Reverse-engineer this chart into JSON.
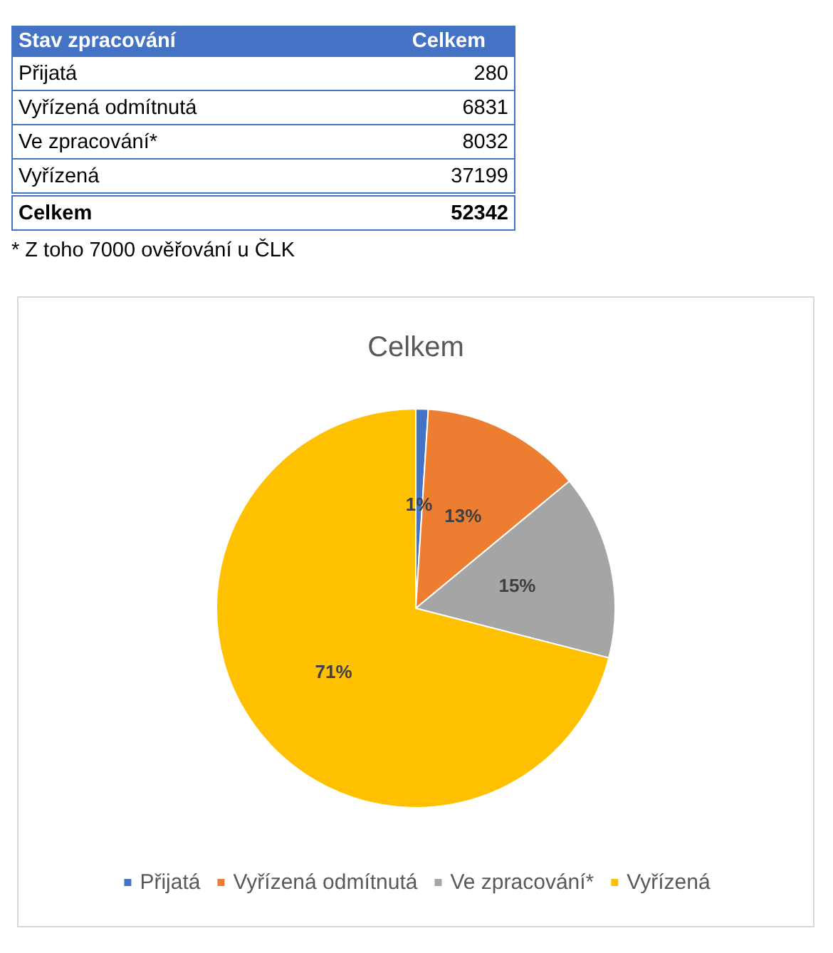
{
  "chart_data": [
    {
      "type": "other",
      "xlabel": "Stav zpracování",
      "ylabel": "Celkem",
      "categories": [
        "Přijatá",
        "Vyřízená odmítnutá",
        "Ve zpracování*",
        "Vyřízená"
      ],
      "values": [
        280,
        6831,
        8032,
        37199
      ],
      "data_labels": true,
      "totals": [
        "52342"
      ],
      "annotations": [
        "* Z toho 7000 ověřování u ČLK"
      ]
    },
    {
      "type": "pie",
      "title": "Celkem",
      "categories": [
        "Přijatá",
        "Vyřízená odmítnutá",
        "Ve zpracování*",
        "Vyřízená"
      ],
      "values": [
        1,
        13,
        15,
        71
      ],
      "colors": [
        "#4472c4",
        "#ed7d31",
        "#a5a5a5",
        "#ffc000"
      ],
      "value_labels": [
        "1%",
        "13%",
        "15%",
        "71%"
      ],
      "legend": "bottom"
    }
  ]
}
